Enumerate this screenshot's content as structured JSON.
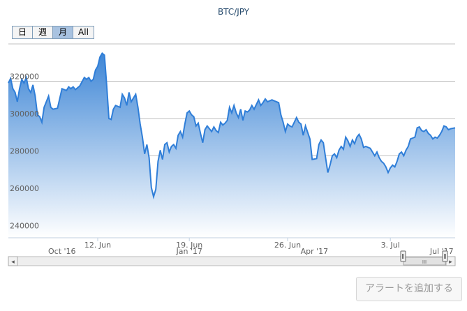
{
  "chart_data": {
    "type": "area",
    "title": "BTC/JPY",
    "range_buttons": [
      {
        "label": "日",
        "active": false
      },
      {
        "label": "週",
        "active": false
      },
      {
        "label": "月",
        "active": true
      },
      {
        "label": "All",
        "active": false
      }
    ],
    "ylim": [
      236000,
      340000
    ],
    "yticks": [
      240000,
      260000,
      280000,
      300000,
      320000
    ],
    "ytick_labels": [
      "240000",
      "260000",
      "280000",
      "300000",
      "320000"
    ],
    "xlim": [
      0,
      100
    ],
    "xticks": [
      {
        "x": 20,
        "label": "12. Jun"
      },
      {
        "x": 40.5,
        "label": "19. Jun"
      },
      {
        "x": 62.5,
        "label": "26. Jun"
      },
      {
        "x": 85.5,
        "label": "3. Jul"
      }
    ],
    "navigator_labels": [
      {
        "x": 12,
        "label": "Oct '16"
      },
      {
        "x": 40.5,
        "label": "Jan '17"
      },
      {
        "x": 68.5,
        "label": "Apr '17"
      },
      {
        "x": 97,
        "label": "Jul '17"
      }
    ],
    "line_color": "#2f7ed8",
    "fill_top_color": "#3e86d6",
    "fill_bottom_color": "#ffffff",
    "points": [
      [
        0.0,
        319000
      ],
      [
        0.5,
        321500
      ],
      [
        1.0,
        316000
      ],
      [
        1.5,
        314000
      ],
      [
        2.0,
        309000
      ],
      [
        2.5,
        316000
      ],
      [
        3.0,
        321000
      ],
      [
        3.5,
        319000
      ],
      [
        4.0,
        322000
      ],
      [
        4.5,
        316000
      ],
      [
        5.0,
        314000
      ],
      [
        5.5,
        318000
      ],
      [
        6.0,
        312000
      ],
      [
        6.5,
        302000
      ],
      [
        7.0,
        301000
      ],
      [
        7.5,
        298000
      ],
      [
        8.0,
        306000
      ],
      [
        8.5,
        309000
      ],
      [
        9.0,
        312000
      ],
      [
        9.5,
        306000
      ],
      [
        10.0,
        305000
      ],
      [
        11.0,
        305500
      ],
      [
        12.0,
        316000
      ],
      [
        13.0,
        315000
      ],
      [
        13.5,
        317000
      ],
      [
        14.0,
        316000
      ],
      [
        14.5,
        317000
      ],
      [
        15.0,
        315500
      ],
      [
        16.0,
        317500
      ],
      [
        17.0,
        322000
      ],
      [
        17.5,
        321000
      ],
      [
        18.0,
        322000
      ],
      [
        18.5,
        320000
      ],
      [
        19.0,
        321000
      ],
      [
        19.5,
        326000
      ],
      [
        20.0,
        328000
      ],
      [
        20.5,
        333000
      ],
      [
        21.0,
        335000
      ],
      [
        21.5,
        334000
      ],
      [
        22.0,
        318000
      ],
      [
        22.5,
        300000
      ],
      [
        23.0,
        299500
      ],
      [
        23.5,
        305000
      ],
      [
        24.0,
        307000
      ],
      [
        25.0,
        306000
      ],
      [
        25.5,
        313000
      ],
      [
        26.0,
        311000
      ],
      [
        26.5,
        307000
      ],
      [
        27.0,
        314000
      ],
      [
        27.5,
        309000
      ],
      [
        28.0,
        311000
      ],
      [
        28.5,
        313000
      ],
      [
        29.0,
        306000
      ],
      [
        29.5,
        297000
      ],
      [
        30.0,
        290000
      ],
      [
        30.5,
        281000
      ],
      [
        31.0,
        286000
      ],
      [
        31.5,
        279000
      ],
      [
        32.0,
        263000
      ],
      [
        32.5,
        258000
      ],
      [
        33.0,
        262000
      ],
      [
        33.5,
        277000
      ],
      [
        34.0,
        283000
      ],
      [
        34.5,
        278000
      ],
      [
        35.0,
        286000
      ],
      [
        35.5,
        287000
      ],
      [
        36.0,
        282000
      ],
      [
        36.5,
        285000
      ],
      [
        37.0,
        286000
      ],
      [
        37.5,
        284000
      ],
      [
        38.0,
        291000
      ],
      [
        38.5,
        293000
      ],
      [
        39.0,
        290000
      ],
      [
        39.5,
        297000
      ],
      [
        40.0,
        303000
      ],
      [
        40.5,
        304000
      ],
      [
        41.0,
        302000
      ],
      [
        41.5,
        301000
      ],
      [
        42.0,
        296000
      ],
      [
        42.5,
        297500
      ],
      [
        43.0,
        292000
      ],
      [
        43.5,
        287000
      ],
      [
        44.0,
        294000
      ],
      [
        44.5,
        296000
      ],
      [
        45.0,
        294500
      ],
      [
        45.5,
        293000
      ],
      [
        46.0,
        295500
      ],
      [
        46.5,
        293500
      ],
      [
        47.0,
        292500
      ],
      [
        47.5,
        298000
      ],
      [
        48.0,
        296500
      ],
      [
        48.5,
        297500
      ],
      [
        49.0,
        299000
      ],
      [
        49.5,
        306000
      ],
      [
        50.0,
        303000
      ],
      [
        50.5,
        307000
      ],
      [
        51.0,
        303000
      ],
      [
        51.5,
        300500
      ],
      [
        52.0,
        305000
      ],
      [
        52.5,
        299000
      ],
      [
        53.0,
        304000
      ],
      [
        53.5,
        303500
      ],
      [
        54.0,
        304500
      ],
      [
        54.5,
        307000
      ],
      [
        55.0,
        305000
      ],
      [
        55.5,
        307500
      ],
      [
        56.0,
        310000
      ],
      [
        56.5,
        307000
      ],
      [
        57.0,
        308500
      ],
      [
        57.5,
        310500
      ],
      [
        58.0,
        309000
      ],
      [
        59.0,
        310000
      ],
      [
        60.0,
        309000
      ],
      [
        60.5,
        308500
      ],
      [
        61.0,
        302000
      ],
      [
        61.5,
        298000
      ],
      [
        62.0,
        293000
      ],
      [
        62.5,
        297000
      ],
      [
        63.0,
        296000
      ],
      [
        63.5,
        295500
      ],
      [
        64.0,
        298000
      ],
      [
        64.5,
        300500
      ],
      [
        65.0,
        298000
      ],
      [
        65.5,
        297000
      ],
      [
        66.0,
        291000
      ],
      [
        66.5,
        296000
      ],
      [
        67.0,
        292500
      ],
      [
        67.5,
        289000
      ],
      [
        68.0,
        278000
      ],
      [
        69.0,
        278500
      ],
      [
        69.5,
        286000
      ],
      [
        70.0,
        288500
      ],
      [
        70.5,
        287000
      ],
      [
        71.0,
        279000
      ],
      [
        71.5,
        271000
      ],
      [
        72.0,
        275000
      ],
      [
        72.5,
        280000
      ],
      [
        73.0,
        281000
      ],
      [
        73.5,
        279000
      ],
      [
        74.0,
        283000
      ],
      [
        74.5,
        285000
      ],
      [
        75.0,
        283500
      ],
      [
        75.5,
        290000
      ],
      [
        76.0,
        288000
      ],
      [
        76.5,
        285000
      ],
      [
        77.0,
        288500
      ],
      [
        77.5,
        286500
      ],
      [
        78.0,
        290000
      ],
      [
        78.5,
        291500
      ],
      [
        79.0,
        289000
      ],
      [
        79.5,
        284500
      ],
      [
        80.0,
        285000
      ],
      [
        81.0,
        284000
      ],
      [
        81.5,
        282000
      ],
      [
        82.0,
        280000
      ],
      [
        82.5,
        282000
      ],
      [
        83.0,
        279000
      ],
      [
        83.5,
        277000
      ],
      [
        84.0,
        276000
      ],
      [
        84.5,
        274000
      ],
      [
        85.0,
        271000
      ],
      [
        85.5,
        273500
      ],
      [
        86.0,
        275000
      ],
      [
        86.5,
        274000
      ],
      [
        87.0,
        277000
      ],
      [
        87.5,
        281000
      ],
      [
        88.0,
        282000
      ],
      [
        88.5,
        280000
      ],
      [
        89.0,
        283000
      ],
      [
        89.5,
        285000
      ],
      [
        90.0,
        289000
      ],
      [
        90.5,
        289500
      ],
      [
        91.0,
        290000
      ],
      [
        91.5,
        295000
      ],
      [
        92.0,
        295500
      ],
      [
        92.5,
        293500
      ],
      [
        93.0,
        293000
      ],
      [
        93.5,
        294000
      ],
      [
        94.0,
        292000
      ],
      [
        94.5,
        291000
      ],
      [
        95.0,
        289000
      ],
      [
        95.5,
        290000
      ],
      [
        96.0,
        289500
      ],
      [
        96.5,
        291000
      ],
      [
        97.0,
        293000
      ],
      [
        97.5,
        296000
      ],
      [
        98.0,
        295500
      ],
      [
        98.5,
        294000
      ],
      [
        99.0,
        294500
      ],
      [
        100.0,
        295000
      ]
    ]
  },
  "alert_button_label": "アラートを追加する",
  "scrollbar_handle_glyph": "III",
  "scroll_left_glyph": "◂",
  "scroll_right_glyph": "▸"
}
